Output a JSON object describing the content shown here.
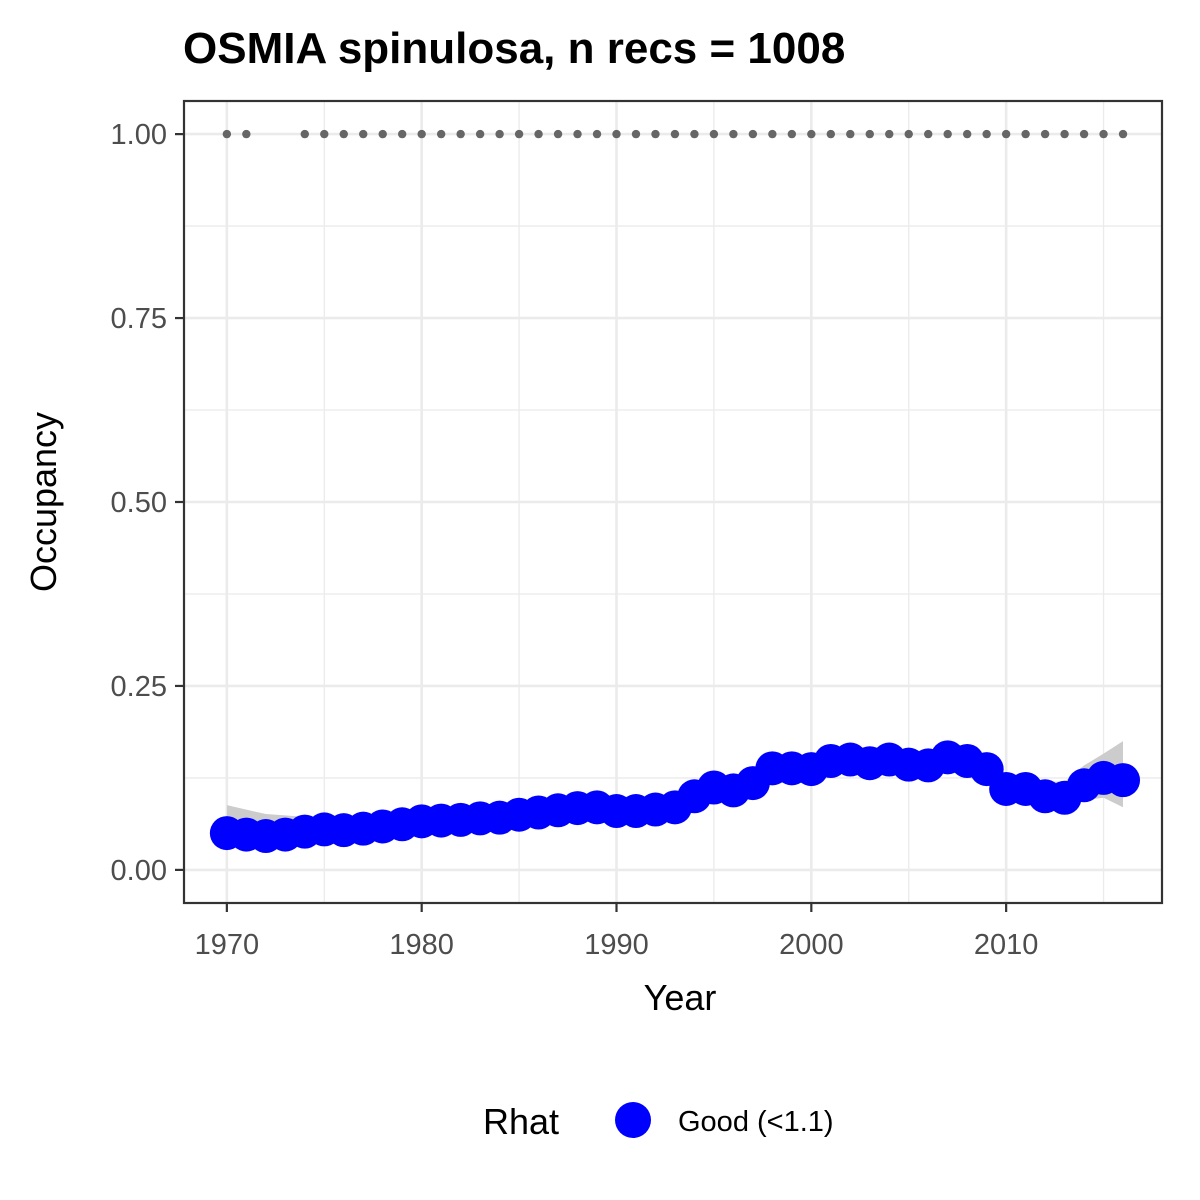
{
  "chart_data": {
    "type": "line",
    "title": "OSMIA spinulosa, n recs = 1008",
    "xlabel": "Year",
    "ylabel": "Occupancy",
    "xlim": [
      1967.8,
      2018.0
    ],
    "ylim": [
      -0.045,
      1.045
    ],
    "x_ticks": [
      "1970",
      "1980",
      "1990",
      "2000",
      "2010"
    ],
    "y_ticks": [
      "0.00",
      "0.25",
      "0.50",
      "0.75",
      "1.00"
    ],
    "grid": true,
    "legend_position": "bottom",
    "legend": {
      "title": "Rhat",
      "entries": [
        {
          "label": "Good (<1.1)",
          "color": "#0000ff"
        }
      ]
    },
    "colors": {
      "points": "#0000ff",
      "ribbon": "#cccccc",
      "record_dots": "#666666",
      "grid": "#ebebeb",
      "panel_border": "#333333"
    },
    "occupancy_series": {
      "x": [
        1970,
        1971,
        1972,
        1973,
        1974,
        1975,
        1976,
        1977,
        1978,
        1979,
        1980,
        1981,
        1982,
        1983,
        1984,
        1985,
        1986,
        1987,
        1988,
        1989,
        1990,
        1991,
        1992,
        1993,
        1994,
        1995,
        1996,
        1997,
        1998,
        1999,
        2000,
        2001,
        2002,
        2003,
        2004,
        2005,
        2006,
        2007,
        2008,
        2009,
        2010,
        2011,
        2012,
        2013,
        2014,
        2015,
        2016
      ],
      "y": [
        0.05,
        0.048,
        0.046,
        0.048,
        0.052,
        0.055,
        0.054,
        0.056,
        0.059,
        0.062,
        0.066,
        0.067,
        0.068,
        0.07,
        0.071,
        0.075,
        0.078,
        0.081,
        0.084,
        0.085,
        0.08,
        0.08,
        0.082,
        0.085,
        0.1,
        0.112,
        0.108,
        0.118,
        0.138,
        0.138,
        0.137,
        0.148,
        0.15,
        0.145,
        0.15,
        0.143,
        0.142,
        0.153,
        0.148,
        0.137,
        0.11,
        0.11,
        0.1,
        0.098,
        0.115,
        0.125,
        0.122
      ],
      "lower": [
        0.032,
        0.034,
        0.034,
        0.036,
        0.04,
        0.043,
        0.043,
        0.045,
        0.048,
        0.051,
        0.055,
        0.056,
        0.057,
        0.059,
        0.06,
        0.064,
        0.067,
        0.07,
        0.072,
        0.073,
        0.069,
        0.069,
        0.071,
        0.074,
        0.088,
        0.099,
        0.095,
        0.105,
        0.124,
        0.125,
        0.123,
        0.133,
        0.135,
        0.13,
        0.135,
        0.128,
        0.127,
        0.136,
        0.132,
        0.12,
        0.095,
        0.092,
        0.083,
        0.08,
        0.095,
        0.098,
        0.085
      ],
      "upper": [
        0.088,
        0.082,
        0.076,
        0.074,
        0.072,
        0.073,
        0.071,
        0.072,
        0.074,
        0.077,
        0.08,
        0.081,
        0.082,
        0.084,
        0.085,
        0.089,
        0.092,
        0.095,
        0.098,
        0.099,
        0.095,
        0.095,
        0.097,
        0.1,
        0.114,
        0.126,
        0.122,
        0.133,
        0.154,
        0.153,
        0.152,
        0.164,
        0.166,
        0.161,
        0.166,
        0.159,
        0.158,
        0.17,
        0.165,
        0.155,
        0.128,
        0.13,
        0.12,
        0.12,
        0.142,
        0.158,
        0.175
      ]
    },
    "record_years": {
      "x": [
        1970,
        1971,
        1974,
        1975,
        1976,
        1977,
        1978,
        1979,
        1980,
        1981,
        1982,
        1983,
        1984,
        1985,
        1986,
        1987,
        1988,
        1989,
        1990,
        1991,
        1992,
        1993,
        1994,
        1995,
        1996,
        1997,
        1998,
        1999,
        2000,
        2001,
        2002,
        2003,
        2004,
        2005,
        2006,
        2007,
        2008,
        2009,
        2010,
        2011,
        2012,
        2013,
        2014,
        2015,
        2016
      ],
      "y": 1.0
    }
  }
}
